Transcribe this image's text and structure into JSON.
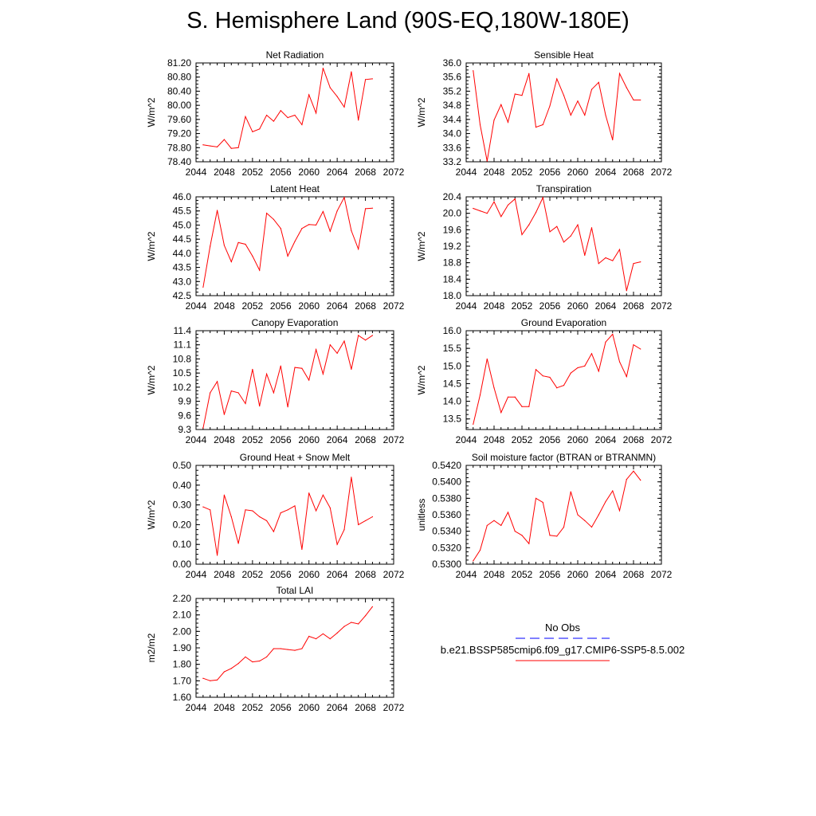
{
  "title": "S. Hemisphere Land (90S-EQ,180W-180E)",
  "colors": {
    "model_line": "#ff0000",
    "obs_line": "#0000ff",
    "axes": "#000000"
  },
  "legend": {
    "obs_label": "No Obs",
    "model_label": "b.e21.BSSP585cmip6.f09_g17.CMIP6-SSP5-8.5.002"
  },
  "chart_data": [
    {
      "type": "line",
      "title": "Net Radiation",
      "ylabel": "W/m^2",
      "xlim": [
        2044,
        2072
      ],
      "ylim": [
        78.4,
        81.2
      ],
      "xticks": [
        "2044",
        "2048",
        "2052",
        "2056",
        "2060",
        "2064",
        "2068",
        "2072"
      ],
      "yticks": [
        "78.40",
        "78.80",
        "79.20",
        "79.60",
        "80.00",
        "80.40",
        "80.80",
        "81.20"
      ],
      "x": [
        2045,
        2046,
        2047,
        2048,
        2049,
        2050,
        2051,
        2052,
        2053,
        2054,
        2055,
        2056,
        2057,
        2058,
        2059,
        2060,
        2061,
        2062,
        2063,
        2064,
        2065,
        2066,
        2067,
        2068,
        2069
      ],
      "values": [
        78.88,
        78.85,
        78.82,
        79.03,
        78.78,
        78.8,
        79.68,
        79.25,
        79.33,
        79.72,
        79.55,
        79.85,
        79.65,
        79.72,
        79.45,
        80.3,
        79.78,
        81.05,
        80.5,
        80.25,
        79.95,
        80.95,
        79.58,
        80.73,
        80.75
      ]
    },
    {
      "type": "line",
      "title": "Sensible Heat",
      "ylabel": "W/m^2",
      "xlim": [
        2044,
        2072
      ],
      "ylim": [
        33.2,
        36.0
      ],
      "xticks": [
        "2044",
        "2048",
        "2052",
        "2056",
        "2060",
        "2064",
        "2068",
        "2072"
      ],
      "yticks": [
        "33.2",
        "33.6",
        "34.0",
        "34.4",
        "34.8",
        "35.2",
        "35.6",
        "36.0"
      ],
      "x": [
        2045,
        2046,
        2047,
        2048,
        2049,
        2050,
        2051,
        2052,
        2053,
        2054,
        2055,
        2056,
        2057,
        2058,
        2059,
        2060,
        2061,
        2062,
        2063,
        2064,
        2065,
        2066,
        2067,
        2068,
        2069
      ],
      "values": [
        35.78,
        34.25,
        33.22,
        34.38,
        34.82,
        34.32,
        35.12,
        35.08,
        35.7,
        34.18,
        34.25,
        34.78,
        35.55,
        35.08,
        34.52,
        34.92,
        34.52,
        35.25,
        35.45,
        34.52,
        33.82,
        35.7,
        35.3,
        34.95,
        34.95
      ]
    },
    {
      "type": "line",
      "title": "Latent Heat",
      "ylabel": "W/m^2",
      "xlim": [
        2044,
        2072
      ],
      "ylim": [
        42.5,
        46.0
      ],
      "xticks": [
        "2044",
        "2048",
        "2052",
        "2056",
        "2060",
        "2064",
        "2068",
        "2072"
      ],
      "yticks": [
        "42.5",
        "43.0",
        "43.5",
        "44.0",
        "44.5",
        "45.0",
        "45.5",
        "46.0"
      ],
      "x": [
        2045,
        2046,
        2047,
        2048,
        2049,
        2050,
        2051,
        2052,
        2053,
        2054,
        2055,
        2056,
        2057,
        2058,
        2059,
        2060,
        2061,
        2062,
        2063,
        2064,
        2065,
        2066,
        2067,
        2068,
        2069
      ],
      "values": [
        42.8,
        44.25,
        45.52,
        44.28,
        43.7,
        44.38,
        44.32,
        43.9,
        43.4,
        45.42,
        45.2,
        44.88,
        43.9,
        44.42,
        44.88,
        45.02,
        45.0,
        45.48,
        44.78,
        45.5,
        45.98,
        44.8,
        44.15,
        45.58,
        45.6
      ]
    },
    {
      "type": "line",
      "title": "Transpiration",
      "ylabel": "W/m^2",
      "xlim": [
        2044,
        2072
      ],
      "ylim": [
        18.0,
        20.4
      ],
      "xticks": [
        "2044",
        "2048",
        "2052",
        "2056",
        "2060",
        "2064",
        "2068",
        "2072"
      ],
      "yticks": [
        "18.0",
        "18.4",
        "18.8",
        "19.2",
        "19.6",
        "20.0",
        "20.4"
      ],
      "x": [
        2045,
        2046,
        2047,
        2048,
        2049,
        2050,
        2051,
        2052,
        2053,
        2054,
        2055,
        2056,
        2057,
        2058,
        2059,
        2060,
        2061,
        2062,
        2063,
        2064,
        2065,
        2066,
        2067,
        2068,
        2069
      ],
      "values": [
        20.12,
        20.06,
        20.0,
        20.28,
        19.92,
        20.2,
        20.35,
        19.48,
        19.72,
        20.02,
        20.38,
        19.55,
        19.68,
        19.3,
        19.45,
        19.72,
        18.98,
        19.65,
        18.78,
        18.92,
        18.85,
        19.12,
        18.12,
        18.78,
        18.82
      ]
    },
    {
      "type": "line",
      "title": "Canopy Evaporation",
      "ylabel": "W/m^2",
      "xlim": [
        2044,
        2072
      ],
      "ylim": [
        9.3,
        11.4
      ],
      "xticks": [
        "2044",
        "2048",
        "2052",
        "2056",
        "2060",
        "2064",
        "2068",
        "2072"
      ],
      "yticks": [
        "9.3",
        "9.6",
        "9.9",
        "10.2",
        "10.5",
        "10.8",
        "11.1",
        "11.4"
      ],
      "x": [
        2045,
        2046,
        2047,
        2048,
        2049,
        2050,
        2051,
        2052,
        2053,
        2054,
        2055,
        2056,
        2057,
        2058,
        2059,
        2060,
        2061,
        2062,
        2063,
        2064,
        2065,
        2066,
        2067,
        2068,
        2069
      ],
      "values": [
        9.33,
        10.08,
        10.32,
        9.62,
        10.12,
        10.08,
        9.85,
        10.58,
        9.8,
        10.48,
        10.08,
        10.65,
        9.78,
        10.62,
        10.6,
        10.35,
        11.0,
        10.48,
        11.1,
        10.92,
        11.18,
        10.58,
        11.3,
        11.2,
        11.3
      ]
    },
    {
      "type": "line",
      "title": "Ground Evaporation",
      "ylabel": "W/m^2",
      "xlim": [
        2044,
        2072
      ],
      "ylim": [
        13.2,
        16.0
      ],
      "xticks": [
        "2044",
        "2048",
        "2052",
        "2056",
        "2060",
        "2064",
        "2068",
        "2072"
      ],
      "yticks": [
        "13.5",
        "14.0",
        "14.5",
        "15.0",
        "15.5",
        "16.0"
      ],
      "x": [
        2045,
        2046,
        2047,
        2048,
        2049,
        2050,
        2051,
        2052,
        2053,
        2054,
        2055,
        2056,
        2057,
        2058,
        2059,
        2060,
        2061,
        2062,
        2063,
        2064,
        2065,
        2066,
        2067,
        2068,
        2069
      ],
      "values": [
        13.35,
        14.18,
        15.2,
        14.38,
        13.68,
        14.12,
        14.12,
        13.85,
        13.85,
        14.9,
        14.72,
        14.68,
        14.38,
        14.45,
        14.8,
        14.95,
        15.0,
        15.35,
        14.85,
        15.68,
        15.9,
        15.12,
        14.7,
        15.6,
        15.48
      ]
    },
    {
      "type": "line",
      "title": "Ground Heat + Snow Melt",
      "ylabel": "W/m^2",
      "xlim": [
        2044,
        2072
      ],
      "ylim": [
        0.0,
        0.5
      ],
      "xticks": [
        "2044",
        "2048",
        "2052",
        "2056",
        "2060",
        "2064",
        "2068",
        "2072"
      ],
      "yticks": [
        "0.00",
        "0.10",
        "0.20",
        "0.30",
        "0.40",
        "0.50"
      ],
      "x": [
        2045,
        2046,
        2047,
        2048,
        2049,
        2050,
        2051,
        2052,
        2053,
        2054,
        2055,
        2056,
        2057,
        2058,
        2059,
        2060,
        2061,
        2062,
        2063,
        2064,
        2065,
        2066,
        2067,
        2068,
        2069
      ],
      "values": [
        0.29,
        0.275,
        0.045,
        0.35,
        0.24,
        0.105,
        0.275,
        0.27,
        0.24,
        0.22,
        0.165,
        0.26,
        0.275,
        0.295,
        0.075,
        0.36,
        0.27,
        0.35,
        0.285,
        0.1,
        0.175,
        0.44,
        0.2,
        0.22,
        0.24
      ]
    },
    {
      "type": "line",
      "title": "Soil moisture factor (BTRAN or BTRANMN)",
      "ylabel": "unitless",
      "xlim": [
        2044,
        2072
      ],
      "ylim": [
        0.53,
        0.542
      ],
      "xticks": [
        "2044",
        "2048",
        "2052",
        "2056",
        "2060",
        "2064",
        "2068",
        "2072"
      ],
      "yticks": [
        "0.5300",
        "0.5320",
        "0.5340",
        "0.5360",
        "0.5380",
        "0.5400",
        "0.5420"
      ],
      "x": [
        2045,
        2046,
        2047,
        2048,
        2049,
        2050,
        2051,
        2052,
        2053,
        2054,
        2055,
        2056,
        2057,
        2058,
        2059,
        2060,
        2061,
        2062,
        2063,
        2064,
        2065,
        2066,
        2067,
        2068,
        2069
      ],
      "values": [
        0.5304,
        0.5317,
        0.5347,
        0.5353,
        0.5347,
        0.5363,
        0.534,
        0.5335,
        0.5325,
        0.538,
        0.5375,
        0.5335,
        0.5334,
        0.5345,
        0.5388,
        0.536,
        0.5353,
        0.5345,
        0.536,
        0.5376,
        0.5389,
        0.5365,
        0.5403,
        0.5413,
        0.5402
      ]
    },
    {
      "type": "line",
      "title": "Total LAI",
      "ylabel": "m2/m2",
      "xlim": [
        2044,
        2072
      ],
      "ylim": [
        1.6,
        2.2
      ],
      "xticks": [
        "2044",
        "2048",
        "2052",
        "2056",
        "2060",
        "2064",
        "2068",
        "2072"
      ],
      "yticks": [
        "1.60",
        "1.70",
        "1.80",
        "1.90",
        "2.00",
        "2.10",
        "2.20"
      ],
      "x": [
        2045,
        2046,
        2047,
        2048,
        2049,
        2050,
        2051,
        2052,
        2053,
        2054,
        2055,
        2056,
        2057,
        2058,
        2059,
        2060,
        2061,
        2062,
        2063,
        2064,
        2065,
        2066,
        2067,
        2068,
        2069
      ],
      "values": [
        1.715,
        1.7,
        1.705,
        1.755,
        1.775,
        1.805,
        1.845,
        1.815,
        1.82,
        1.845,
        1.895,
        1.895,
        1.89,
        1.885,
        1.895,
        1.97,
        1.955,
        1.985,
        1.955,
        1.99,
        2.03,
        2.055,
        2.045,
        2.095,
        2.15
      ]
    }
  ]
}
